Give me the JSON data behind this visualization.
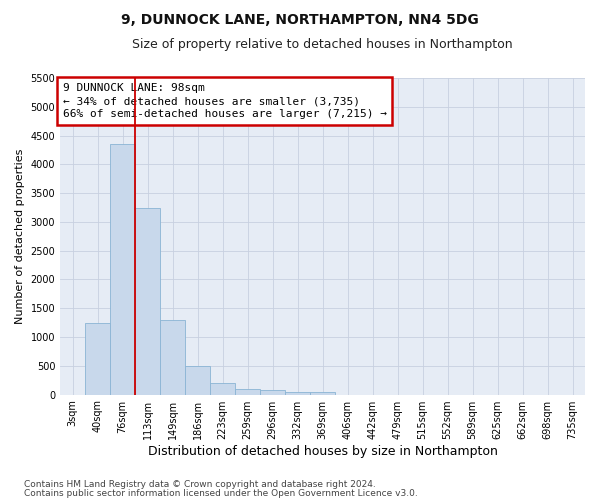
{
  "title": "9, DUNNOCK LANE, NORTHAMPTON, NN4 5DG",
  "subtitle": "Size of property relative to detached houses in Northampton",
  "xlabel": "Distribution of detached houses by size in Northampton",
  "ylabel": "Number of detached properties",
  "footnote1": "Contains HM Land Registry data © Crown copyright and database right 2024.",
  "footnote2": "Contains public sector information licensed under the Open Government Licence v3.0.",
  "annotation_title": "9 DUNNOCK LANE: 98sqm",
  "annotation_line1": "← 34% of detached houses are smaller (3,735)",
  "annotation_line2": "66% of semi-detached houses are larger (7,215) →",
  "bar_labels": [
    "3sqm",
    "40sqm",
    "76sqm",
    "113sqm",
    "149sqm",
    "186sqm",
    "223sqm",
    "259sqm",
    "296sqm",
    "332sqm",
    "369sqm",
    "406sqm",
    "442sqm",
    "479sqm",
    "515sqm",
    "552sqm",
    "589sqm",
    "625sqm",
    "662sqm",
    "698sqm",
    "735sqm"
  ],
  "bar_values": [
    0,
    1250,
    4350,
    3250,
    1300,
    500,
    200,
    100,
    75,
    50,
    50,
    0,
    0,
    0,
    0,
    0,
    0,
    0,
    0,
    0,
    0
  ],
  "bar_color": "#c8d8eb",
  "bar_edge_color": "#8ab4d4",
  "red_line_index": 2.5,
  "ylim_max": 5500,
  "ytick_step": 500,
  "grid_color": "#c8d0e0",
  "background_color": "#e6ecf5",
  "annotation_box_facecolor": "#ffffff",
  "annotation_box_edgecolor": "#cc0000",
  "title_fontsize": 10,
  "subtitle_fontsize": 9,
  "ylabel_fontsize": 8,
  "xlabel_fontsize": 9,
  "tick_fontsize": 7,
  "annotation_fontsize": 8,
  "footnote_fontsize": 6.5
}
